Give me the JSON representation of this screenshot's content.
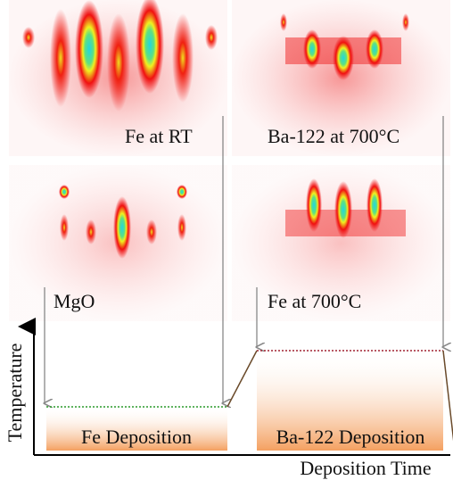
{
  "panels": [
    {
      "label": "Fe at RT"
    },
    {
      "label": "Ba-122 at 700°C"
    },
    {
      "label": "MgO"
    },
    {
      "label": "Fe at 700°C"
    }
  ],
  "schematic": {
    "y_axis_label": "Temperature",
    "x_axis_label": "Deposition Time",
    "stages": [
      {
        "label": "Fe Deposition"
      },
      {
        "label": "Ba-122 Deposition"
      }
    ]
  }
}
